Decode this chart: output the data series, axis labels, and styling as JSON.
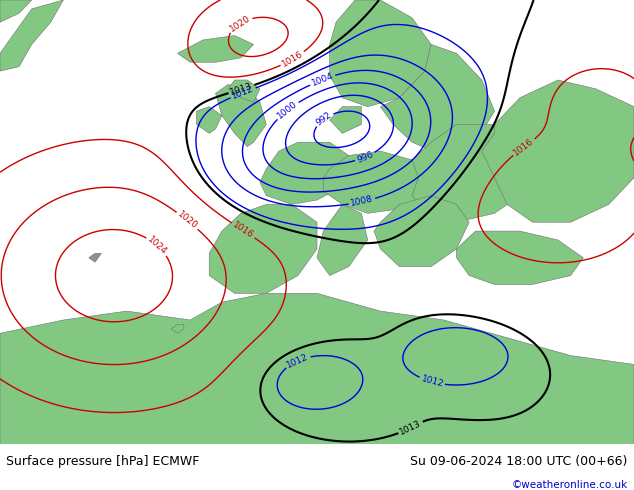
{
  "title_left": "Surface pressure [hPa] ECMWF",
  "title_right": "Su 09-06-2024 18:00 UTC (00+66)",
  "credit": "©weatheronline.co.uk",
  "credit_color": "#0000cc",
  "map_bg": "#d8d8d8",
  "land_color": "#82c882",
  "footer_bg": "#d0d0d0",
  "footer_text_color": "#000000",
  "fig_width": 6.34,
  "fig_height": 4.9,
  "dpi": 100,
  "label_fontsize": 6.5,
  "footer_fontsize": 9
}
